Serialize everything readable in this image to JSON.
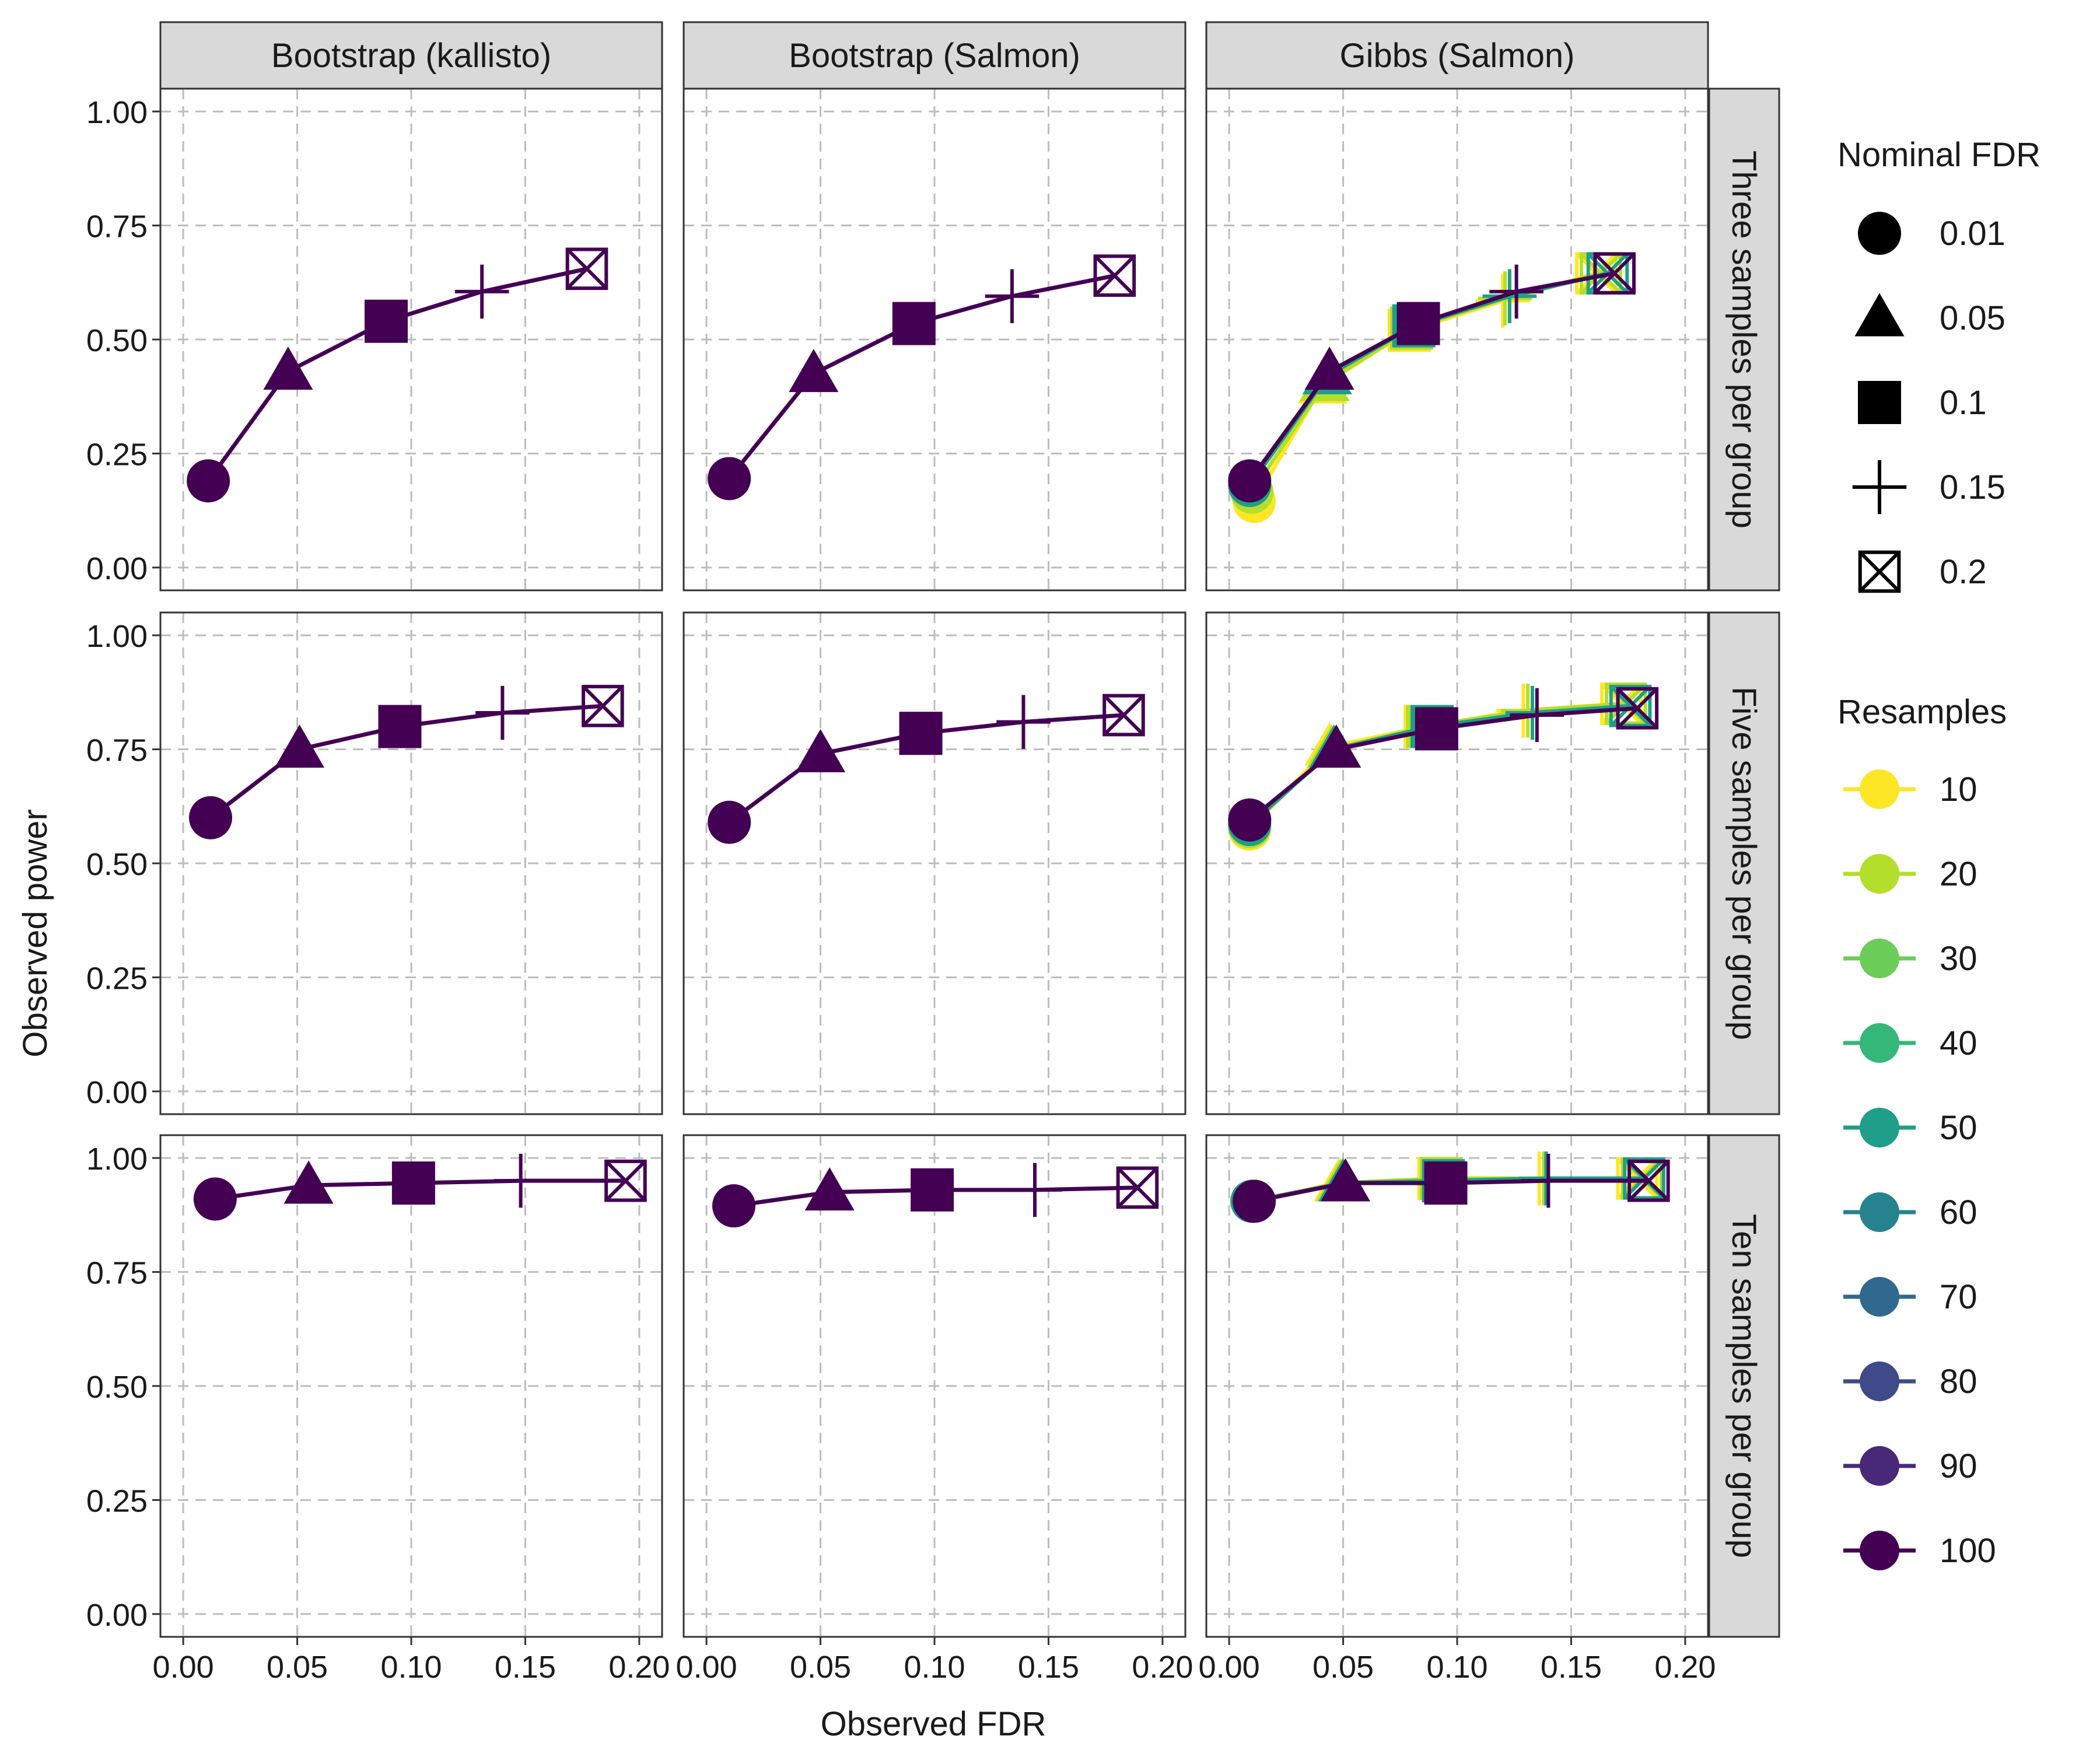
{
  "chart_data": {
    "type": "line",
    "xlabel": "Observed FDR",
    "ylabel": "Observed power",
    "xlim": [
      -0.01,
      0.21
    ],
    "ylim": [
      -0.05,
      1.05
    ],
    "x_ticks": [
      "0.00",
      "0.05",
      "0.10",
      "0.15",
      "0.20"
    ],
    "x_tick_values": [
      0,
      0.05,
      0.1,
      0.15,
      0.2
    ],
    "y_ticks": [
      "0.00",
      "0.25",
      "0.50",
      "0.75",
      "1.00"
    ],
    "y_tick_values": [
      0,
      0.25,
      0.5,
      0.75,
      1
    ],
    "grid": true,
    "column_strips": [
      "Bootstrap (kallisto)",
      "Bootstrap (Salmon)",
      "Gibbs (Salmon)"
    ],
    "row_strips": [
      "Three samples per group",
      "Five samples per group",
      "Ten samples per group"
    ],
    "legend_placement": "right",
    "legend_shape": {
      "title": "Nominal FDR",
      "items": [
        {
          "label": "0.01",
          "shape": "circle"
        },
        {
          "label": "0.05",
          "shape": "triangle"
        },
        {
          "label": "0.1",
          "shape": "square"
        },
        {
          "label": "0.15",
          "shape": "plus"
        },
        {
          "label": "0.2",
          "shape": "boxed-x"
        }
      ]
    },
    "legend_color": {
      "title": "Resamples",
      "items": [
        {
          "label": "10",
          "color": "#FDE725"
        },
        {
          "label": "20",
          "color": "#B4DE2C"
        },
        {
          "label": "30",
          "color": "#6DCD59"
        },
        {
          "label": "40",
          "color": "#35B779"
        },
        {
          "label": "50",
          "color": "#1F9E89"
        },
        {
          "label": "60",
          "color": "#26828E"
        },
        {
          "label": "70",
          "color": "#31688E"
        },
        {
          "label": "80",
          "color": "#3E4A89"
        },
        {
          "label": "90",
          "color": "#482878"
        },
        {
          "label": "100",
          "color": "#440154"
        }
      ]
    },
    "panels": [
      {
        "row": 0,
        "col": 0,
        "series": [
          {
            "resamples": "100",
            "x": [
              0.011,
              0.046,
              0.089,
              0.131,
              0.177
            ],
            "y": [
              0.19,
              0.43,
              0.54,
              0.605,
              0.655
            ]
          }
        ]
      },
      {
        "row": 0,
        "col": 1,
        "series": [
          {
            "resamples": "100",
            "x": [
              0.01,
              0.047,
              0.091,
              0.134,
              0.179
            ],
            "y": [
              0.195,
              0.425,
              0.535,
              0.595,
              0.64
            ]
          }
        ]
      },
      {
        "row": 0,
        "col": 2,
        "series": [
          {
            "resamples": "10",
            "x": [
              0.011,
              0.041,
              0.079,
              0.12,
              0.161
            ],
            "y": [
              0.145,
              0.4,
              0.52,
              0.585,
              0.645
            ]
          },
          {
            "resamples": "20",
            "x": [
              0.01,
              0.042,
              0.08,
              0.121,
              0.163
            ],
            "y": [
              0.165,
              0.405,
              0.525,
              0.59,
              0.645
            ]
          },
          {
            "resamples": "50",
            "x": [
              0.009,
              0.043,
              0.081,
              0.123,
              0.166
            ],
            "y": [
              0.18,
              0.42,
              0.53,
              0.595,
              0.645
            ]
          },
          {
            "resamples": "100",
            "x": [
              0.009,
              0.044,
              0.083,
              0.126,
              0.169
            ],
            "y": [
              0.19,
              0.43,
              0.535,
              0.605,
              0.645
            ]
          }
        ]
      },
      {
        "row": 1,
        "col": 0,
        "series": [
          {
            "resamples": "100",
            "x": [
              0.012,
              0.051,
              0.095,
              0.14,
              0.184
            ],
            "y": [
              0.6,
              0.75,
              0.8,
              0.83,
              0.845
            ]
          }
        ]
      },
      {
        "row": 1,
        "col": 1,
        "series": [
          {
            "resamples": "100",
            "x": [
              0.01,
              0.05,
              0.094,
              0.139,
              0.183
            ],
            "y": [
              0.59,
              0.74,
              0.785,
              0.81,
              0.825
            ]
          }
        ]
      },
      {
        "row": 1,
        "col": 2,
        "series": [
          {
            "resamples": "10",
            "x": [
              0.009,
              0.044,
              0.086,
              0.129,
              0.172
            ],
            "y": [
              0.575,
              0.755,
              0.8,
              0.835,
              0.85
            ]
          },
          {
            "resamples": "20",
            "x": [
              0.009,
              0.045,
              0.087,
              0.131,
              0.174
            ],
            "y": [
              0.58,
              0.75,
              0.8,
              0.835,
              0.85
            ]
          },
          {
            "resamples": "50",
            "x": [
              0.009,
              0.046,
              0.089,
              0.133,
              0.176
            ],
            "y": [
              0.585,
              0.75,
              0.8,
              0.83,
              0.845
            ]
          },
          {
            "resamples": "100",
            "x": [
              0.009,
              0.047,
              0.091,
              0.135,
              0.179
            ],
            "y": [
              0.595,
              0.75,
              0.795,
              0.825,
              0.84
            ]
          }
        ]
      },
      {
        "row": 2,
        "col": 0,
        "series": [
          {
            "resamples": "100",
            "x": [
              0.014,
              0.055,
              0.101,
              0.148,
              0.194
            ],
            "y": [
              0.91,
              0.94,
              0.945,
              0.95,
              0.95
            ]
          }
        ]
      },
      {
        "row": 2,
        "col": 1,
        "series": [
          {
            "resamples": "100",
            "x": [
              0.012,
              0.054,
              0.099,
              0.144,
              0.189
            ],
            "y": [
              0.895,
              0.925,
              0.93,
              0.93,
              0.935
            ]
          }
        ]
      },
      {
        "row": 2,
        "col": 2,
        "series": [
          {
            "resamples": "10",
            "x": [
              0.01,
              0.048,
              0.092,
              0.136,
              0.179
            ],
            "y": [
              0.905,
              0.945,
              0.955,
              0.955,
              0.955
            ]
          },
          {
            "resamples": "20",
            "x": [
              0.01,
              0.049,
              0.093,
              0.138,
              0.181
            ],
            "y": [
              0.905,
              0.945,
              0.955,
              0.955,
              0.955
            ]
          },
          {
            "resamples": "50",
            "x": [
              0.01,
              0.05,
              0.094,
              0.139,
              0.182
            ],
            "y": [
              0.905,
              0.945,
              0.95,
              0.955,
              0.955
            ]
          },
          {
            "resamples": "100",
            "x": [
              0.011,
              0.051,
              0.095,
              0.14,
              0.184
            ],
            "y": [
              0.905,
              0.945,
              0.945,
              0.95,
              0.95
            ]
          }
        ]
      }
    ]
  }
}
